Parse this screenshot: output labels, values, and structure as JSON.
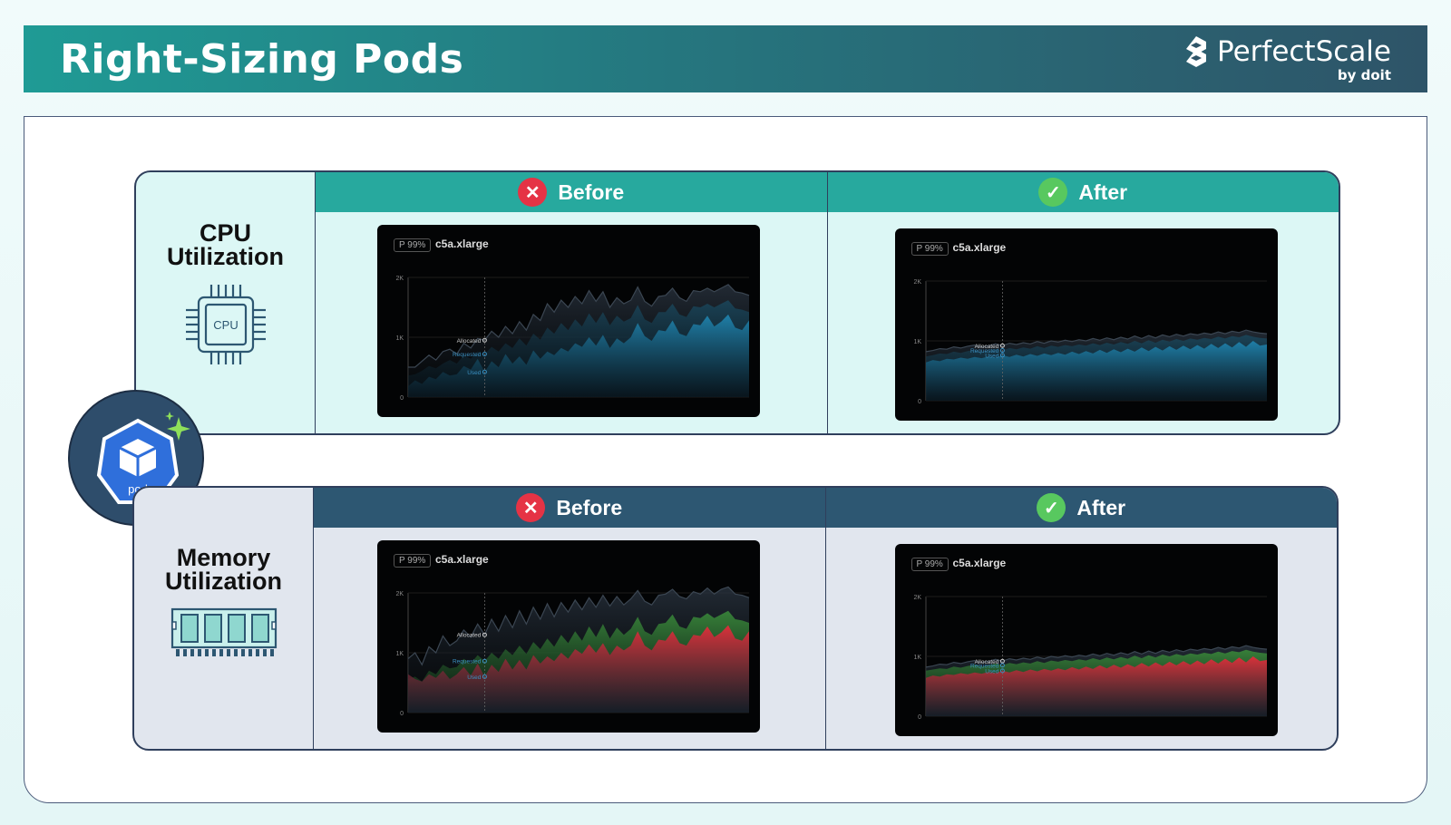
{
  "header": {
    "title": "Right-Sizing Pods",
    "brand_name": "PerfectScale",
    "brand_sub": "by doit"
  },
  "pod": {
    "label": "pod"
  },
  "sections": {
    "cpu": {
      "title": "CPU\nUtilization",
      "icon_label": "CPU",
      "before_label": "Before",
      "after_label": "After"
    },
    "memory": {
      "title": "Memory\nUtilization",
      "before_label": "Before",
      "after_label": "After"
    }
  },
  "chart_common": {
    "badge": "P 99%",
    "instance": "c5a.xlarge",
    "yticks": [
      "2K",
      "1K",
      "0"
    ],
    "series_labels": [
      "Allocated",
      "Requested",
      "Used"
    ]
  },
  "colors": {
    "cpu_fill": "#1f7fa8",
    "mem_used_fill": "#d8313a",
    "mem_req_fill": "#3a8a3a",
    "before_icon": "#e53345",
    "after_icon": "#58c85f"
  },
  "chart_data": [
    {
      "type": "area",
      "id": "cpu-before",
      "ylim": [
        0,
        2000
      ],
      "yticks": [
        "2K",
        "1K",
        "0"
      ],
      "series": [
        {
          "name": "Allocated",
          "values": [
            500,
            500,
            600,
            700,
            620,
            760,
            800,
            720,
            900,
            820,
            980,
            950,
            1100,
            1000,
            1180,
            1060,
            1260,
            1120,
            1380,
            1280,
            1560,
            1420,
            1620,
            1500,
            1680,
            1560,
            1780,
            1600,
            1760,
            1500,
            1660,
            1560,
            1620,
            1840,
            1600,
            1520,
            1680,
            1700,
            1820,
            1660,
            1600,
            1780,
            1760,
            1820,
            1760,
            1820,
            1880,
            1760,
            1740,
            1700
          ]
        },
        {
          "name": "Requested",
          "values": [
            360,
            380,
            440,
            520,
            480,
            560,
            620,
            560,
            700,
            640,
            760,
            720,
            840,
            760,
            900,
            820,
            980,
            860,
            1060,
            960,
            1160,
            1060,
            1240,
            1120,
            1300,
            1180,
            1400,
            1240,
            1420,
            1200,
            1360,
            1260,
            1320,
            1540,
            1300,
            1240,
            1420,
            1420,
            1560,
            1380,
            1340,
            1520,
            1500,
            1560,
            1500,
            1560,
            1620,
            1480,
            1460,
            1420
          ]
        },
        {
          "name": "Used",
          "values": [
            180,
            280,
            220,
            340,
            300,
            420,
            360,
            380,
            520,
            460,
            640,
            420,
            600,
            500,
            720,
            560,
            680,
            540,
            780,
            640,
            760,
            700,
            820,
            760,
            900,
            840,
            1000,
            860,
            1040,
            820,
            980,
            900,
            1000,
            1240,
            1020,
            940,
            1120,
            1100,
            1280,
            1060,
            1020,
            1220,
            1200,
            1360,
            1180,
            1260,
            1380,
            1160,
            1120,
            1280
          ]
        }
      ]
    },
    {
      "type": "area",
      "id": "cpu-after",
      "ylim": [
        0,
        2000
      ],
      "yticks": [
        "2K",
        "1K",
        "0"
      ],
      "series": [
        {
          "name": "Allocated",
          "values": [
            820,
            840,
            870,
            860,
            900,
            880,
            910,
            930,
            900,
            920,
            950,
            920,
            960,
            940,
            970,
            950,
            990,
            960,
            1000,
            980,
            1010,
            990,
            1020,
            1000,
            1040,
            1010,
            1050,
            1020,
            1060,
            1030,
            1080,
            1040,
            1090,
            1050,
            1100,
            1070,
            1110,
            1080,
            1120,
            1100,
            1130,
            1110,
            1150,
            1120,
            1160,
            1140,
            1180,
            1150,
            1130,
            1120
          ]
        },
        {
          "name": "Requested",
          "values": [
            740,
            760,
            790,
            780,
            820,
            800,
            830,
            850,
            820,
            840,
            870,
            840,
            880,
            860,
            890,
            870,
            910,
            880,
            920,
            900,
            930,
            910,
            940,
            920,
            960,
            930,
            970,
            940,
            980,
            950,
            1000,
            960,
            1010,
            970,
            1020,
            990,
            1030,
            1000,
            1040,
            1020,
            1050,
            1030,
            1070,
            1040,
            1080,
            1060,
            1100,
            1070,
            1050,
            1040
          ]
        },
        {
          "name": "Used",
          "values": [
            640,
            680,
            660,
            700,
            690,
            720,
            700,
            730,
            710,
            740,
            720,
            760,
            730,
            770,
            740,
            780,
            750,
            790,
            760,
            800,
            770,
            820,
            780,
            830,
            790,
            850,
            800,
            860,
            810,
            870,
            820,
            890,
            830,
            900,
            840,
            910,
            850,
            920,
            860,
            930,
            870,
            950,
            880,
            960,
            890,
            980,
            900,
            1000,
            920,
            940
          ]
        }
      ]
    },
    {
      "type": "area",
      "id": "mem-before",
      "ylim": [
        0,
        2000
      ],
      "yticks": [
        "2K",
        "1K",
        "0"
      ],
      "series": [
        {
          "name": "Allocated",
          "values": [
            900,
            1000,
            800,
            1100,
            1000,
            1280,
            1120,
            1200,
            1380,
            1260,
            1480,
            1300,
            1560,
            1360,
            1620,
            1420,
            1700,
            1480,
            1760,
            1560,
            1820,
            1600,
            1840,
            1680,
            1880,
            1720,
            1920,
            1760,
            1960,
            1780,
            1940,
            1800,
            1900,
            2040,
            1860,
            1800,
            1960,
            1980,
            2060,
            1940,
            1900,
            2020,
            1980,
            2080,
            1980,
            2060,
            2100,
            1980,
            1960,
            1920
          ]
        },
        {
          "name": "Requested",
          "values": [
            560,
            600,
            520,
            700,
            640,
            800,
            740,
            760,
            900,
            820,
            960,
            860,
            1000,
            900,
            1060,
            960,
            1120,
            980,
            1180,
            1060,
            1240,
            1100,
            1300,
            1160,
            1360,
            1200,
            1440,
            1260,
            1480,
            1240,
            1420,
            1300,
            1400,
            1600,
            1360,
            1300,
            1480,
            1500,
            1640,
            1440,
            1400,
            1600,
            1580,
            1660,
            1580,
            1640,
            1700,
            1560,
            1540,
            1500
          ]
        },
        {
          "name": "Used",
          "values": [
            640,
            560,
            520,
            640,
            580,
            700,
            560,
            640,
            760,
            620,
            820,
            600,
            800,
            680,
            900,
            720,
            880,
            720,
            960,
            820,
            940,
            860,
            1000,
            900,
            1060,
            980,
            1140,
            1000,
            1160,
            960,
            1120,
            1040,
            1120,
            1360,
            1120,
            1040,
            1220,
            1200,
            1360,
            1160,
            1120,
            1300,
            1280,
            1440,
            1260,
            1340,
            1460,
            1240,
            1200,
            1360
          ]
        }
      ]
    },
    {
      "type": "area",
      "id": "mem-after",
      "ylim": [
        0,
        2000
      ],
      "yticks": [
        "2K",
        "1K",
        "0"
      ],
      "series": [
        {
          "name": "Allocated",
          "values": [
            820,
            840,
            870,
            860,
            900,
            880,
            910,
            930,
            900,
            920,
            950,
            920,
            960,
            940,
            970,
            950,
            990,
            960,
            1000,
            980,
            1010,
            990,
            1020,
            1000,
            1040,
            1010,
            1050,
            1020,
            1060,
            1030,
            1080,
            1040,
            1090,
            1050,
            1100,
            1070,
            1110,
            1080,
            1120,
            1100,
            1130,
            1110,
            1150,
            1120,
            1160,
            1140,
            1180,
            1150,
            1130,
            1120
          ]
        },
        {
          "name": "Requested",
          "values": [
            760,
            780,
            800,
            790,
            830,
            810,
            840,
            860,
            830,
            850,
            880,
            850,
            890,
            870,
            900,
            880,
            920,
            890,
            930,
            910,
            940,
            920,
            950,
            930,
            970,
            940,
            980,
            950,
            990,
            960,
            1010,
            970,
            1020,
            980,
            1030,
            1000,
            1040,
            1010,
            1050,
            1030,
            1060,
            1040,
            1080,
            1050,
            1090,
            1070,
            1110,
            1080,
            1060,
            1050
          ]
        },
        {
          "name": "Used",
          "values": [
            640,
            680,
            660,
            700,
            690,
            720,
            700,
            730,
            710,
            740,
            720,
            760,
            730,
            770,
            740,
            780,
            750,
            790,
            760,
            800,
            770,
            820,
            780,
            830,
            790,
            850,
            800,
            860,
            810,
            870,
            820,
            890,
            830,
            900,
            840,
            910,
            850,
            920,
            860,
            930,
            870,
            950,
            880,
            960,
            890,
            980,
            900,
            1000,
            920,
            940
          ]
        }
      ]
    }
  ]
}
